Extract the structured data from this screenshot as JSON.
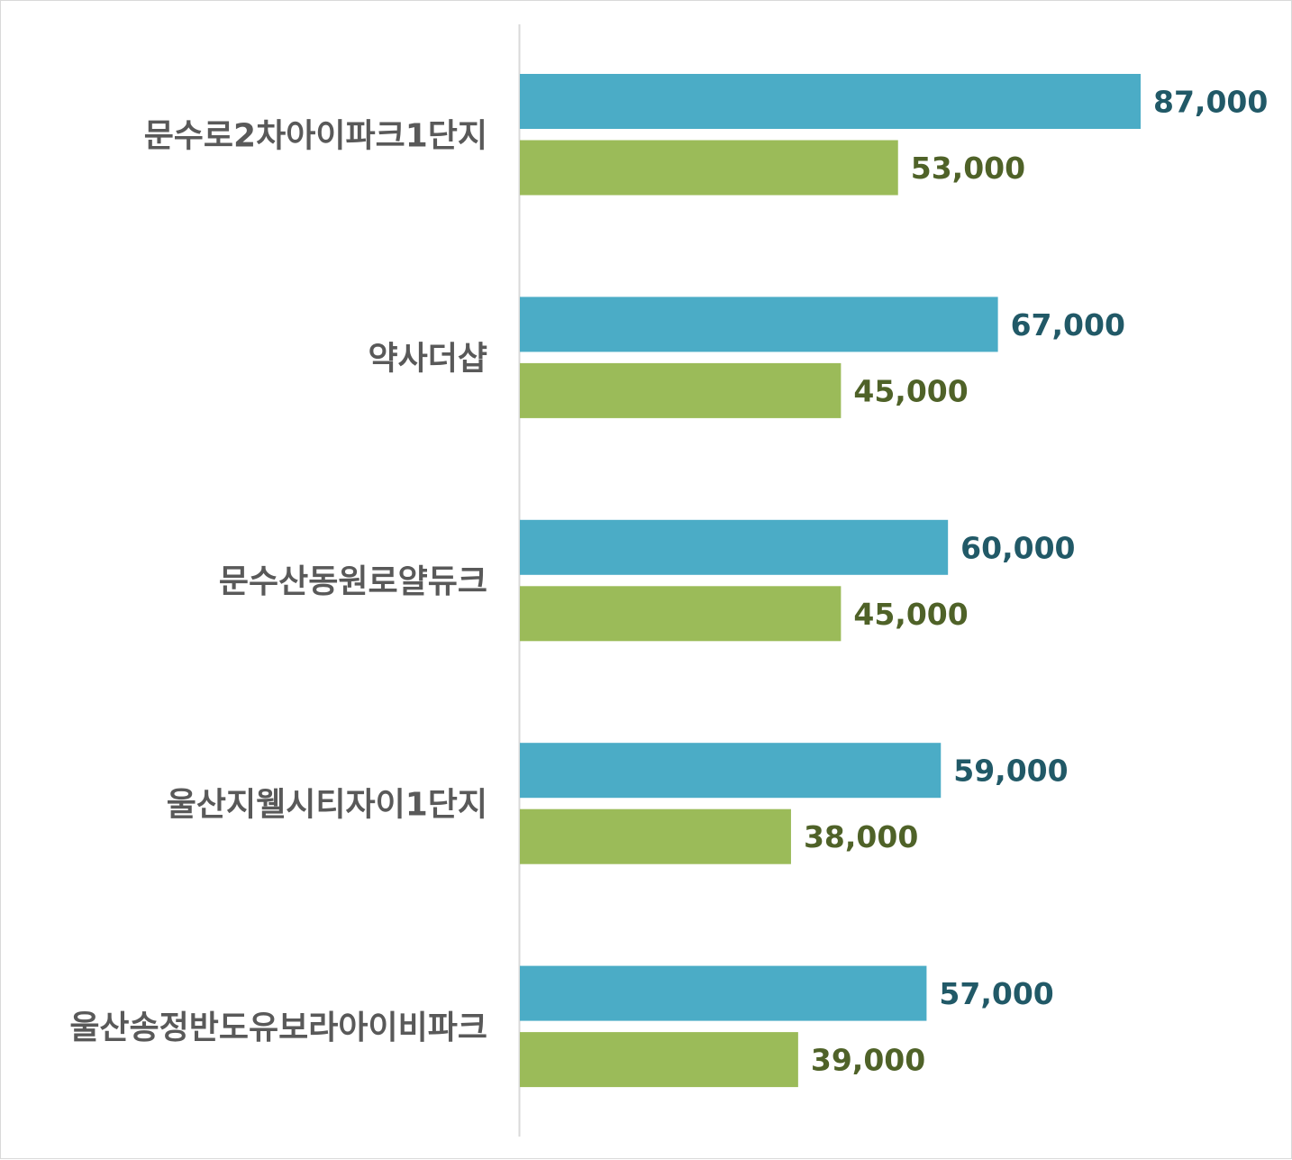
{
  "chart_data": {
    "type": "bar",
    "orientation": "horizontal",
    "categories": [
      "문수로2차아이파크1단지",
      "약사더샵",
      "문수산동원로얄듀크",
      "울산지웰시티자이1단지",
      "울산송정반도유보라아이비파크"
    ],
    "series": [
      {
        "values": [
          87000,
          67000,
          60000,
          59000,
          57000
        ],
        "value_labels": [
          "87,000",
          "67,000",
          "60,000",
          "59,000",
          "57,000"
        ],
        "color": "#4bacc6",
        "label_color": "#215967"
      },
      {
        "values": [
          53000,
          45000,
          45000,
          38000,
          39000
        ],
        "value_labels": [
          "53,000",
          "45,000",
          "45,000",
          "38,000",
          "39,000"
        ],
        "color": "#9bbb59",
        "label_color": "#4f6228"
      }
    ],
    "xlim": [
      0,
      87000
    ],
    "grid": false,
    "legend": "none"
  }
}
